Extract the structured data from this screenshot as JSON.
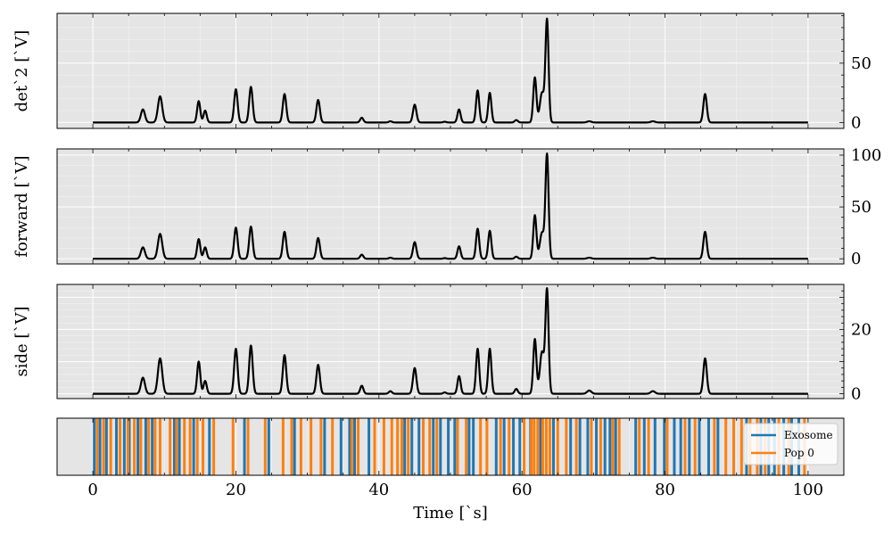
{
  "chart_data": {
    "type": "line",
    "time_range": [
      0,
      100
    ],
    "xlim": [
      -5,
      105
    ],
    "xlabel": "Time [`s]",
    "x_ticks": [
      0,
      20,
      40,
      60,
      80,
      100
    ],
    "peaks": [
      {
        "t": 7.0,
        "w": 0.28,
        "det2": 11,
        "forward": 11,
        "side": 5
      },
      {
        "t": 9.4,
        "w": 0.3,
        "det2": 22,
        "forward": 24,
        "side": 11
      },
      {
        "t": 14.8,
        "w": 0.22,
        "det2": 18,
        "forward": 19,
        "side": 10
      },
      {
        "t": 15.7,
        "w": 0.22,
        "det2": 10,
        "forward": 11,
        "side": 4
      },
      {
        "t": 20.0,
        "w": 0.24,
        "det2": 28,
        "forward": 30,
        "side": 14
      },
      {
        "t": 22.1,
        "w": 0.24,
        "det2": 30,
        "forward": 31,
        "side": 15
      },
      {
        "t": 26.8,
        "w": 0.24,
        "det2": 24,
        "forward": 26,
        "side": 12
      },
      {
        "t": 31.5,
        "w": 0.24,
        "det2": 19,
        "forward": 20,
        "side": 9
      },
      {
        "t": 37.6,
        "w": 0.22,
        "det2": 4,
        "forward": 4,
        "side": 2.5
      },
      {
        "t": 41.6,
        "w": 0.22,
        "det2": 1,
        "forward": 1,
        "side": 0.8
      },
      {
        "t": 45.0,
        "w": 0.24,
        "det2": 15,
        "forward": 16,
        "side": 8
      },
      {
        "t": 49.2,
        "w": 0.22,
        "det2": 0.6,
        "forward": 0.6,
        "side": 0.4
      },
      {
        "t": 51.2,
        "w": 0.22,
        "det2": 11,
        "forward": 12,
        "side": 5.5
      },
      {
        "t": 53.8,
        "w": 0.22,
        "det2": 27,
        "forward": 29,
        "side": 14
      },
      {
        "t": 55.5,
        "w": 0.22,
        "det2": 25,
        "forward": 27,
        "side": 14
      },
      {
        "t": 59.2,
        "w": 0.22,
        "det2": 2,
        "forward": 2,
        "side": 1.5
      },
      {
        "t": 61.8,
        "w": 0.22,
        "det2": 38,
        "forward": 42,
        "side": 17
      },
      {
        "t": 62.8,
        "w": 0.3,
        "det2": 25,
        "forward": 25,
        "side": 13
      },
      {
        "t": 63.5,
        "w": 0.22,
        "det2": 86,
        "forward": 100,
        "side": 32
      },
      {
        "t": 69.4,
        "w": 0.3,
        "det2": 1,
        "forward": 1,
        "side": 1
      },
      {
        "t": 78.3,
        "w": 0.3,
        "det2": 1,
        "forward": 1,
        "side": 0.8
      },
      {
        "t": 85.6,
        "w": 0.24,
        "det2": 24,
        "forward": 26,
        "side": 11
      }
    ],
    "panels": [
      {
        "key": "det2",
        "ylabel": "det`2 [`V]",
        "ylim": [
          -5,
          92
        ],
        "yticks": [
          0,
          50
        ]
      },
      {
        "key": "forward",
        "ylabel": "forward [`V]",
        "ylim": [
          -5,
          106
        ],
        "yticks": [
          0,
          50,
          100
        ]
      },
      {
        "key": "side",
        "ylabel": "side [`V]",
        "ylim": [
          -1.5,
          34
        ],
        "yticks": [
          0,
          20
        ]
      }
    ],
    "events": {
      "series": [
        {
          "name": "Exosome",
          "color": "#1f77b4",
          "times": [
            0.2,
            1.0,
            1.9,
            3.3,
            4.4,
            5.1,
            6.3,
            7.4,
            8.3,
            11.4,
            12.1,
            14.1,
            16.3,
            21.2,
            24.6,
            28.2,
            32.4,
            34.7,
            35.9,
            36.6,
            38.6,
            43.6,
            44.6,
            45.6,
            47.6,
            48.6,
            49.7,
            50.6,
            52.6,
            53.2,
            56.4,
            57.5,
            58.8,
            59.7,
            61.2,
            62.6,
            64.4,
            66.8,
            68.1,
            69.2,
            70.4,
            71.6,
            72.3,
            73.1,
            75.9,
            77.1,
            78.6,
            79.9,
            81.3,
            82.2,
            83.4,
            84.8,
            86.1,
            87.4,
            91.4,
            93.4,
            94.5,
            95.3,
            96.6,
            97.7,
            98.7
          ]
        },
        {
          "name": "Pop 0",
          "color": "#ff7f0e",
          "times": [
            0.6,
            1.5,
            2.5,
            3.8,
            4.9,
            5.8,
            6.7,
            7.8,
            8.7,
            9.4,
            10.8,
            11.7,
            12.8,
            13.6,
            14.6,
            15.4,
            16.9,
            19.6,
            21.7,
            24.1,
            26.6,
            27.8,
            29.1,
            30.5,
            31.9,
            33.5,
            36.2,
            37.1,
            39.4,
            40.7,
            41.8,
            42.6,
            43.2,
            44.1,
            46.2,
            47.1,
            48.1,
            51.0,
            52.2,
            54.2,
            55.1,
            57.0,
            58.2,
            60.3,
            61.3,
            61.7,
            62.2,
            62.9,
            63.4,
            63.9,
            65.0,
            66.2,
            67.6,
            69.7,
            71.0,
            72.7,
            73.6,
            76.4,
            77.7,
            80.3,
            82.8,
            84.2,
            86.9,
            88.5,
            89.6,
            90.7,
            91.9,
            92.9,
            94.0,
            95.9,
            97.3,
            99.5
          ]
        }
      ]
    }
  }
}
